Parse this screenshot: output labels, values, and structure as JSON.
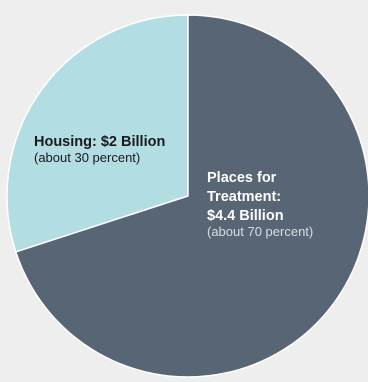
{
  "chart_data": {
    "type": "pie",
    "slices": [
      {
        "label_lines": [
          "Housing: $2 Billion"
        ],
        "note": "(about 30 percent)",
        "value": 2,
        "percent": 30,
        "color": "#b2dde2",
        "label_color": "#1a1a1a",
        "note_color": "#1a1a1a"
      },
      {
        "label_lines": [
          "Places for",
          "Treatment:",
          "$4.4 Billion"
        ],
        "note": "(about 70 percent)",
        "value": 4.4,
        "percent": 70,
        "color": "#586574",
        "label_color": "#ffffff",
        "note_color": "#d8dde3"
      }
    ],
    "start_angle_deg": 0,
    "direction": "counterclockwise",
    "background": "#eeeeee"
  }
}
